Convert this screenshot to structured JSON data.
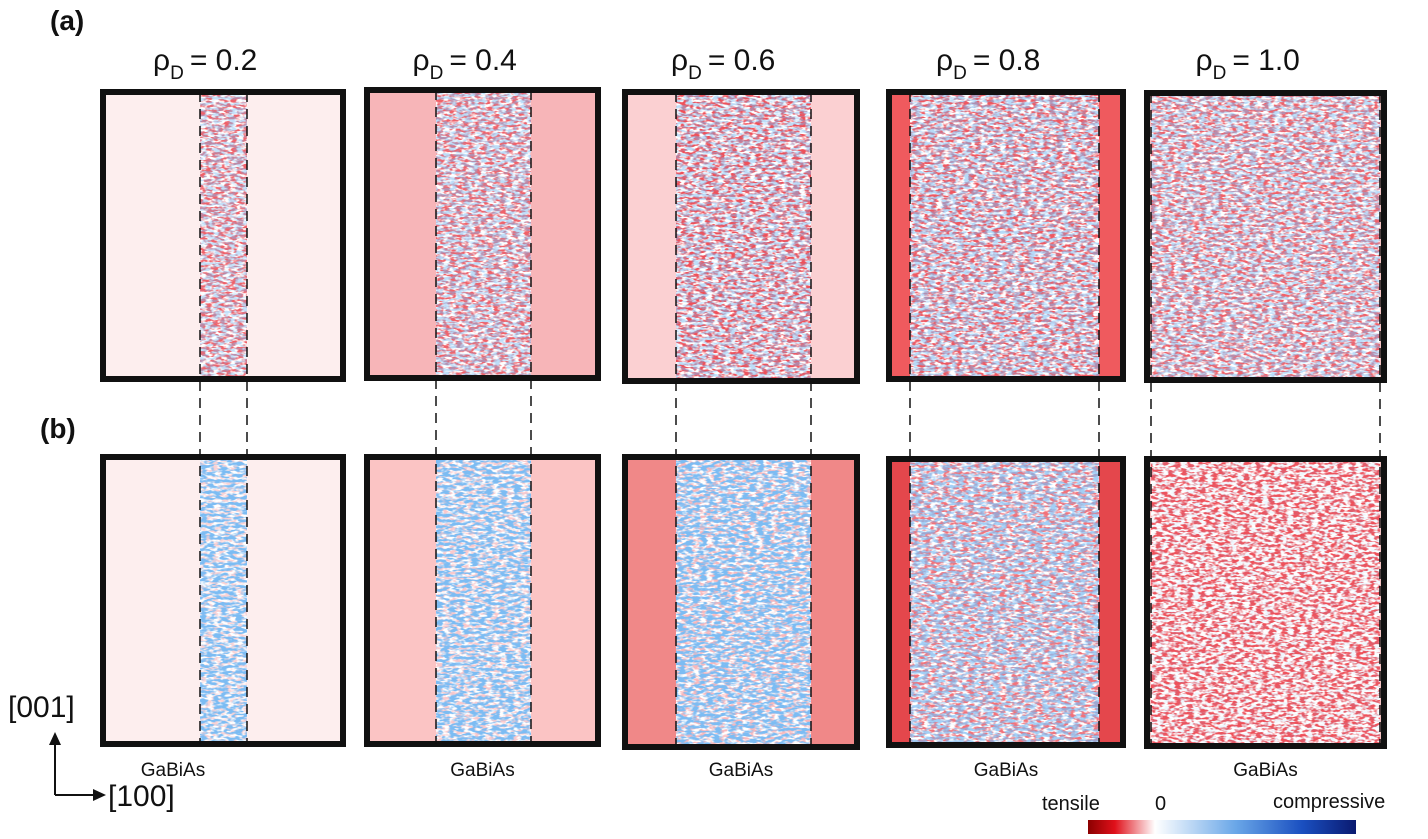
{
  "panels": {
    "a": "(a)",
    "b": "(b)"
  },
  "columns": [
    {
      "symbol": "ρ",
      "subscript": "D",
      "value": "= 0.2",
      "material": "GaBiAs"
    },
    {
      "symbol": "ρ",
      "subscript": "D",
      "value": "= 0.4",
      "material": "GaBiAs"
    },
    {
      "symbol": "ρ",
      "subscript": "D",
      "value": "= 0.6",
      "material": "GaBiAs"
    },
    {
      "symbol": "ρ",
      "subscript": "D",
      "value": "= 0.8",
      "material": "GaBiAs"
    },
    {
      "symbol": "ρ",
      "subscript": "D",
      "value": "= 1.0",
      "material": "GaBiAs"
    }
  ],
  "axes": {
    "vertical": "[001]",
    "horizontal": "[100]"
  },
  "colorbar": {
    "left": "tensile",
    "center": "0",
    "right": "compressive"
  }
}
